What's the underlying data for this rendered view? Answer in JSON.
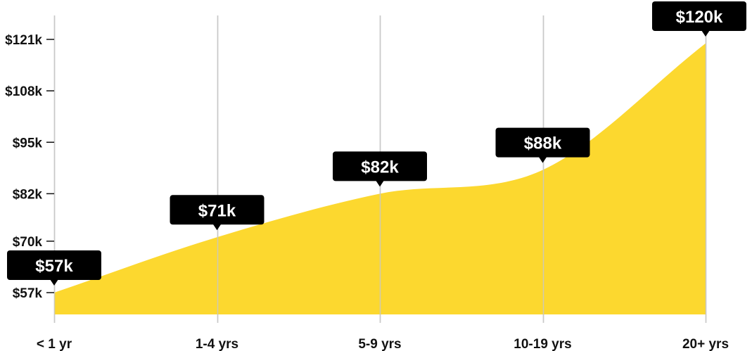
{
  "chart_data": {
    "type": "area",
    "title": "",
    "xlabel": "",
    "ylabel": "",
    "categories": [
      "< 1 yr",
      "1-4 yrs",
      "5-9 yrs",
      "10-19 yrs",
      "20+ yrs"
    ],
    "series": [
      {
        "values": [
          57,
          71,
          82,
          88,
          120
        ],
        "data_labels": [
          "$57k",
          "$71k",
          "$82k",
          "$88k",
          "$120k"
        ]
      }
    ],
    "y_ticks": [
      {
        "value": 57,
        "label": "$57k"
      },
      {
        "value": 70,
        "label": "$70k"
      },
      {
        "value": 82,
        "label": "$82k"
      },
      {
        "value": 95,
        "label": "$95k"
      },
      {
        "value": 108,
        "label": "$108k"
      },
      {
        "value": 121,
        "label": "$121k"
      }
    ],
    "ylim": [
      57,
      121
    ],
    "grid": "vertical",
    "legend": "none",
    "colors": {
      "area_fill": "#FCD82F",
      "grid_line": "#C8C8C8",
      "label_box": "#000000",
      "label_text": "#FFFFFF",
      "axis_text": "#111111"
    }
  }
}
